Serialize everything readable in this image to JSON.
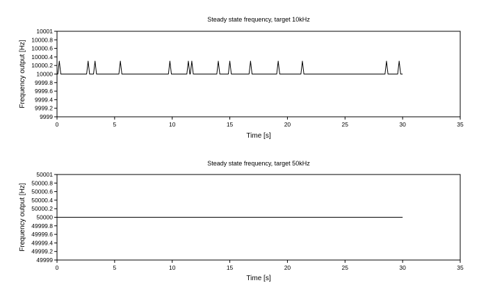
{
  "chart_data": [
    {
      "type": "line",
      "title": "Steady state frequency, target 10kHz",
      "xlabel": "Time [s]",
      "ylabel": "Frequency output [Hz]",
      "xlim": [
        0,
        35
      ],
      "ylim": [
        9999,
        10001
      ],
      "x_ticks": [
        "0",
        "5",
        "10",
        "15",
        "20",
        "25",
        "30",
        "35"
      ],
      "y_ticks": [
        "9999",
        "9999.2",
        "9999.4",
        "9999.6",
        "9999.8",
        "10000",
        "10000.2",
        "10000.4",
        "10000.6",
        "10000.8",
        "10001"
      ],
      "grid": false,
      "series": [
        {
          "baseline": 10000,
          "x_range": [
            0,
            30
          ],
          "spike_height": 10000.3,
          "spike_times": [
            0.2,
            2.7,
            3.3,
            5.5,
            9.8,
            11.4,
            11.7,
            14.0,
            15.0,
            16.8,
            19.2,
            21.3,
            28.6,
            29.7
          ]
        }
      ]
    },
    {
      "type": "line",
      "title": "Steady state frequency, target 50kHz",
      "xlabel": "Time [s]",
      "ylabel": "Frequency output [Hz]",
      "xlim": [
        0,
        35
      ],
      "ylim": [
        49999,
        50001
      ],
      "x_ticks": [
        "0",
        "5",
        "10",
        "15",
        "20",
        "25",
        "30",
        "35"
      ],
      "y_ticks": [
        "49999",
        "49999.2",
        "49999.4",
        "49999.6",
        "49999.8",
        "50000",
        "50000.2",
        "50000.4",
        "50000.6",
        "50000.8",
        "50001"
      ],
      "grid": false,
      "series": [
        {
          "baseline": 50000,
          "x_range": [
            0,
            30
          ],
          "spike_height": null,
          "spike_times": []
        }
      ]
    }
  ]
}
